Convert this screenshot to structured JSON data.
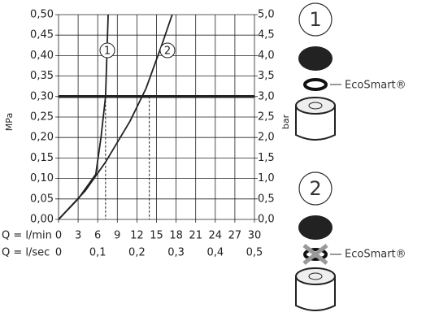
{
  "chart_data": {
    "type": "line",
    "x_label": "Q = l/min",
    "x2_label": "Q = l/sec",
    "y_label": "MPa",
    "y2_label": "bar",
    "xlim": [
      0,
      30
    ],
    "xticks": [
      0,
      3,
      6,
      9,
      12,
      15,
      18,
      21,
      24,
      27,
      30
    ],
    "x2lim": [
      0,
      0.5
    ],
    "x2ticks": [
      0,
      {
        "value": 0.1,
        "label": "0,1"
      },
      {
        "value": 0.2,
        "label": "0,2"
      },
      {
        "value": 0.3,
        "label": "0,3"
      },
      {
        "value": 0.4,
        "label": "0,4"
      },
      {
        "value": 0.5,
        "label": "0,5"
      }
    ],
    "ylim": [
      0,
      0.5
    ],
    "yticks": [
      {
        "value": 0,
        "label": "0,00"
      },
      {
        "value": 0.05,
        "label": "0,05"
      },
      {
        "value": 0.1,
        "label": "0,10"
      },
      {
        "value": 0.15,
        "label": "0,15"
      },
      {
        "value": 0.2,
        "label": "0,20"
      },
      {
        "value": 0.25,
        "label": "0,25"
      },
      {
        "value": 0.3,
        "label": "0,30"
      },
      {
        "value": 0.35,
        "label": "0,35"
      },
      {
        "value": 0.4,
        "label": "0,40"
      },
      {
        "value": 0.45,
        "label": "0,45"
      },
      {
        "value": 0.5,
        "label": "0,50"
      }
    ],
    "y2lim": [
      0,
      5
    ],
    "y2ticks": [
      {
        "value": 0,
        "label": "0,0"
      },
      {
        "value": 0.5,
        "label": "0,5"
      },
      {
        "value": 1,
        "label": "1,0"
      },
      {
        "value": 1.5,
        "label": "1,5"
      },
      {
        "value": 2,
        "label": "2,0"
      },
      {
        "value": 2.5,
        "label": "2,5"
      },
      {
        "value": 3,
        "label": "3,0"
      },
      {
        "value": 3.5,
        "label": "3,5"
      },
      {
        "value": 4,
        "label": "4,0"
      },
      {
        "value": 4.5,
        "label": "4,5"
      },
      {
        "value": 5,
        "label": "5,0"
      }
    ],
    "grid": true,
    "color": "#222",
    "reference_line": 0.3,
    "dashed_x": [
      7.2,
      13.9
    ],
    "series": [
      {
        "name": "1",
        "x": [
          0,
          3,
          5.7,
          6.5,
          7.2,
          7.6
        ],
        "values": [
          0,
          0.05,
          0.11,
          0.2,
          0.3,
          0.5
        ]
      },
      {
        "name": "2",
        "x": [
          0,
          4.1,
          7.2,
          10.95,
          13.4,
          15.9,
          17.4
        ],
        "values": [
          0,
          0.07,
          0.14,
          0.24,
          0.32,
          0.43,
          0.5
        ]
      }
    ]
  },
  "illustrations": [
    {
      "label": "1",
      "text": "EcoSmart®"
    },
    {
      "label": "2",
      "text": "EcoSmart®"
    }
  ]
}
